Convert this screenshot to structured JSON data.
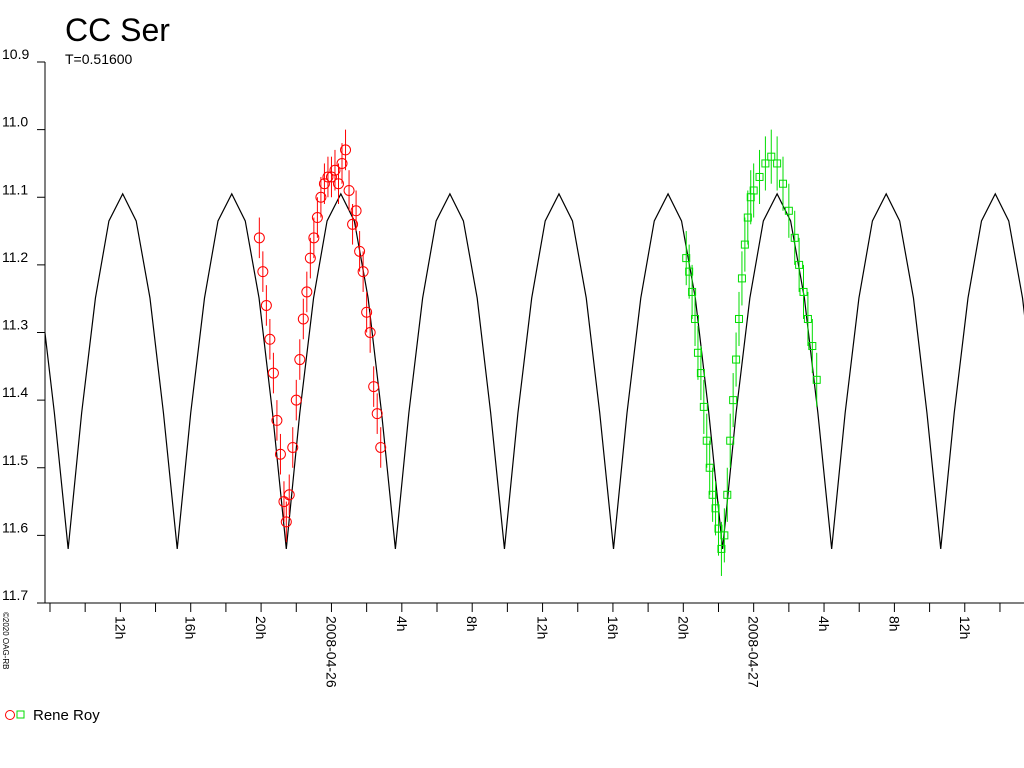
{
  "chart_data": {
    "type": "lightcurve",
    "title": "CC Ser",
    "subtitle": "T=0.51600",
    "copyright": "©2020 OAG-RB",
    "legend": {
      "label": "Rene Roy"
    },
    "y_inverted": true,
    "ylim": [
      11.7,
      10.9
    ],
    "yticks": [
      {
        "value": 10.9,
        "label": "10.9"
      },
      {
        "value": 11.0,
        "label": "11.0"
      },
      11.1,
      11.2,
      11.3,
      11.4,
      11.5,
      11.6,
      11.7
    ],
    "xlim": [
      "2008-04-25T07:43",
      "2008-04-27T15:22"
    ],
    "xticks": [
      {
        "value": "2008-04-25T12:00",
        "label": "12h"
      },
      {
        "value": "2008-04-25T16:00",
        "label": "16h"
      },
      {
        "value": "2008-04-25T20:00",
        "label": "20h"
      },
      {
        "value": "2008-04-26T00:00",
        "label": "2008-04-26"
      },
      {
        "value": "2008-04-26T04:00",
        "label": "4h"
      },
      {
        "value": "2008-04-26T08:00",
        "label": "8h"
      },
      {
        "value": "2008-04-26T12:00",
        "label": "12h"
      },
      {
        "value": "2008-04-26T16:00",
        "label": "16h"
      },
      {
        "value": "2008-04-26T20:00",
        "label": "20h"
      },
      {
        "value": "2008-04-27T00:00",
        "label": "2008-04-27"
      },
      {
        "value": "2008-04-27T04:00",
        "label": "4h"
      },
      {
        "value": "2008-04-27T08:00",
        "label": "8h"
      },
      {
        "value": "2008-04-27T12:00",
        "label": "12h"
      }
    ],
    "xminorticks": [
      "2008-04-25T08:00",
      "2008-04-25T10:00",
      "2008-04-25T14:00",
      "2008-04-25T18:00",
      "2008-04-25T22:00",
      "2008-04-26T02:00",
      "2008-04-26T06:00",
      "2008-04-26T10:00",
      "2008-04-26T14:00",
      "2008-04-26T18:00",
      "2008-04-26T22:00",
      "2008-04-27T02:00",
      "2008-04-27T06:00",
      "2008-04-27T10:00",
      "2008-04-27T14:00"
    ],
    "model": {
      "color": "#000000",
      "x": [
        "2008-04-25T07:29",
        "2008-04-25T08:15",
        "2008-04-25T09:02",
        "2008-04-25T09:48",
        "2008-04-25T10:35",
        "2008-04-25T11:21",
        "2008-04-25T12:08",
        "2008-04-25T12:54",
        "2008-04-25T13:41",
        "2008-04-25T14:27",
        "2008-04-25T15:14",
        "2008-04-25T16:00",
        "2008-04-25T16:47",
        "2008-04-25T17:33",
        "2008-04-25T18:20",
        "2008-04-25T19:06",
        "2008-04-25T19:53",
        "2008-04-25T20:39",
        "2008-04-25T21:26",
        "2008-04-25T22:12",
        "2008-04-25T22:59",
        "2008-04-25T23:45",
        "2008-04-26T00:32",
        "2008-04-26T01:18",
        "2008-04-26T02:05",
        "2008-04-26T02:51",
        "2008-04-26T03:38",
        "2008-04-26T04:24",
        "2008-04-26T05:11",
        "2008-04-26T05:57",
        "2008-04-26T06:44",
        "2008-04-26T07:30",
        "2008-04-26T08:17",
        "2008-04-26T09:03",
        "2008-04-26T09:50",
        "2008-04-26T10:36",
        "2008-04-26T11:23",
        "2008-04-26T12:09",
        "2008-04-26T12:56",
        "2008-04-26T13:42",
        "2008-04-26T14:29",
        "2008-04-26T15:15",
        "2008-04-26T16:02",
        "2008-04-26T16:48",
        "2008-04-26T17:35",
        "2008-04-26T18:21",
        "2008-04-26T19:08",
        "2008-04-26T19:54",
        "2008-04-26T20:41",
        "2008-04-26T21:27",
        "2008-04-26T22:14",
        "2008-04-26T23:00",
        "2008-04-26T23:47",
        "2008-04-27T00:33",
        "2008-04-27T01:20",
        "2008-04-27T02:06",
        "2008-04-27T02:53",
        "2008-04-27T03:39",
        "2008-04-27T04:26",
        "2008-04-27T05:12",
        "2008-04-27T05:59",
        "2008-04-27T06:45",
        "2008-04-27T07:32",
        "2008-04-27T08:18",
        "2008-04-27T09:05",
        "2008-04-27T09:51",
        "2008-04-27T10:38",
        "2008-04-27T11:24",
        "2008-04-27T12:11",
        "2008-04-27T12:57",
        "2008-04-27T13:44",
        "2008-04-27T14:30",
        "2008-04-27T15:17",
        "2008-04-27T16:03"
      ],
      "values": [
        11.249,
        11.419,
        11.62,
        11.419,
        11.249,
        11.135,
        11.095,
        11.135,
        11.249,
        11.419,
        11.62,
        11.419,
        11.249,
        11.135,
        11.095,
        11.135,
        11.249,
        11.419,
        11.62,
        11.419,
        11.249,
        11.135,
        11.095,
        11.135,
        11.249,
        11.419,
        11.62,
        11.419,
        11.249,
        11.135,
        11.095,
        11.135,
        11.249,
        11.419,
        11.62,
        11.419,
        11.249,
        11.135,
        11.095,
        11.135,
        11.249,
        11.419,
        11.62,
        11.419,
        11.249,
        11.135,
        11.095,
        11.135,
        11.249,
        11.419,
        11.62,
        11.419,
        11.249,
        11.135,
        11.095,
        11.135,
        11.249,
        11.419,
        11.62,
        11.419,
        11.249,
        11.135,
        11.095,
        11.135,
        11.249,
        11.419,
        11.62,
        11.419,
        11.249,
        11.135,
        11.095,
        11.135,
        11.249,
        11.419
      ]
    },
    "series": [
      {
        "color": "#ff0000",
        "marker": "circle",
        "x": [
          "2008-04-25T19:54",
          "2008-04-25T20:06",
          "2008-04-25T20:18",
          "2008-04-25T20:30",
          "2008-04-25T20:42",
          "2008-04-25T20:54",
          "2008-04-25T21:06",
          "2008-04-25T21:18",
          "2008-04-25T21:26",
          "2008-04-25T21:36",
          "2008-04-25T21:48",
          "2008-04-25T22:00",
          "2008-04-25T22:12",
          "2008-04-25T22:24",
          "2008-04-25T22:36",
          "2008-04-25T22:48",
          "2008-04-25T23:00",
          "2008-04-25T23:12",
          "2008-04-25T23:24",
          "2008-04-25T23:36",
          "2008-04-25T23:48",
          "2008-04-26T00:00",
          "2008-04-26T00:12",
          "2008-04-26T00:24",
          "2008-04-26T00:36",
          "2008-04-26T00:48",
          "2008-04-26T01:00",
          "2008-04-26T01:12",
          "2008-04-26T01:24",
          "2008-04-26T01:36",
          "2008-04-26T01:48",
          "2008-04-26T02:00",
          "2008-04-26T02:12",
          "2008-04-26T02:24",
          "2008-04-26T02:36",
          "2008-04-26T02:48"
        ],
        "values": [
          11.16,
          11.21,
          11.26,
          11.31,
          11.36,
          11.43,
          11.48,
          11.55,
          11.58,
          11.54,
          11.47,
          11.4,
          11.34,
          11.28,
          11.24,
          11.19,
          11.16,
          11.13,
          11.1,
          11.08,
          11.07,
          11.07,
          11.06,
          11.08,
          11.05,
          11.03,
          11.09,
          11.14,
          11.12,
          11.18,
          11.21,
          11.27,
          11.3,
          11.38,
          11.42,
          11.47
        ],
        "errors": [
          0.03,
          0.03,
          0.03,
          0.03,
          0.03,
          0.03,
          0.03,
          0.03,
          0.03,
          0.03,
          0.03,
          0.03,
          0.03,
          0.03,
          0.03,
          0.03,
          0.03,
          0.03,
          0.03,
          0.03,
          0.03,
          0.03,
          0.03,
          0.03,
          0.03,
          0.03,
          0.03,
          0.03,
          0.03,
          0.03,
          0.03,
          0.03,
          0.03,
          0.03,
          0.03,
          0.03
        ]
      },
      {
        "color": "#00dd00",
        "marker": "square",
        "x": [
          "2008-04-26T20:10",
          "2008-04-26T20:20",
          "2008-04-26T20:30",
          "2008-04-26T20:40",
          "2008-04-26T20:50",
          "2008-04-26T21:00",
          "2008-04-26T21:10",
          "2008-04-26T21:20",
          "2008-04-26T21:30",
          "2008-04-26T21:40",
          "2008-04-26T21:50",
          "2008-04-26T22:00",
          "2008-04-26T22:10",
          "2008-04-26T22:20",
          "2008-04-26T22:30",
          "2008-04-26T22:40",
          "2008-04-26T22:50",
          "2008-04-26T23:00",
          "2008-04-26T23:10",
          "2008-04-26T23:20",
          "2008-04-26T23:30",
          "2008-04-26T23:40",
          "2008-04-26T23:50",
          "2008-04-27T00:00",
          "2008-04-27T00:20",
          "2008-04-27T00:40",
          "2008-04-27T01:00",
          "2008-04-27T01:20",
          "2008-04-27T01:40",
          "2008-04-27T02:00",
          "2008-04-27T02:20",
          "2008-04-27T02:35",
          "2008-04-27T02:50",
          "2008-04-27T03:05",
          "2008-04-27T03:20",
          "2008-04-27T03:35"
        ],
        "values": [
          11.19,
          11.21,
          11.24,
          11.28,
          11.33,
          11.36,
          11.41,
          11.46,
          11.5,
          11.54,
          11.56,
          11.59,
          11.62,
          11.6,
          11.54,
          11.46,
          11.4,
          11.34,
          11.28,
          11.22,
          11.17,
          11.13,
          11.1,
          11.09,
          11.07,
          11.05,
          11.04,
          11.05,
          11.08,
          11.12,
          11.16,
          11.2,
          11.24,
          11.28,
          11.32,
          11.37
        ],
        "errors": [
          0.04,
          0.04,
          0.04,
          0.04,
          0.04,
          0.04,
          0.04,
          0.04,
          0.04,
          0.04,
          0.04,
          0.04,
          0.04,
          0.04,
          0.04,
          0.04,
          0.04,
          0.04,
          0.04,
          0.04,
          0.04,
          0.04,
          0.04,
          0.04,
          0.04,
          0.04,
          0.04,
          0.04,
          0.04,
          0.04,
          0.04,
          0.04,
          0.04,
          0.04,
          0.04,
          0.04
        ]
      }
    ]
  }
}
